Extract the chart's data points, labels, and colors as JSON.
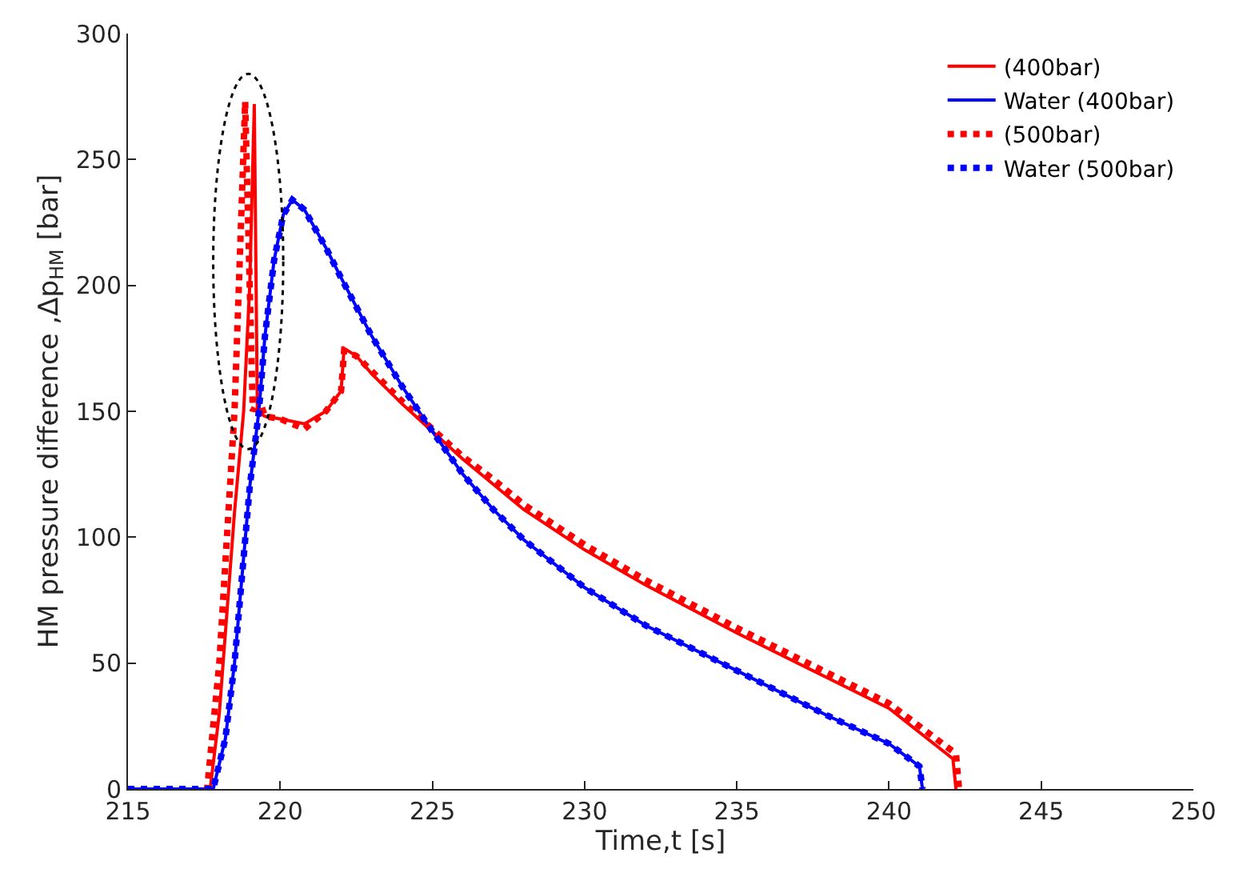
{
  "chart_data": {
    "type": "line",
    "xlabel": "Time,t [s]",
    "ylabel": "HM pressure difference ,Δp$_{HM}$ [bar]",
    "xlim": [
      215,
      250
    ],
    "xticks": [
      215,
      220,
      225,
      230,
      235,
      240,
      245,
      250
    ],
    "ylim": [
      0,
      300
    ],
    "yticks": [
      0,
      50,
      100,
      150,
      200,
      250,
      300
    ],
    "legend": "top right",
    "marker": "none",
    "series": [
      {
        "name": "(400bar)",
        "color": "#ff0000",
        "line_style": "solid",
        "x": [
          215,
          217.7,
          218.0,
          218.5,
          218.8,
          219.0,
          219.15,
          219.25,
          219.5,
          220,
          220.8,
          221.5,
          222,
          222.1,
          222.5,
          223,
          224,
          225,
          226,
          227,
          228,
          230,
          232,
          235,
          238,
          240,
          242.1,
          242.2
        ],
        "values": [
          0,
          0,
          30,
          110,
          150,
          200,
          272,
          150,
          148,
          147,
          145,
          150,
          158,
          175,
          172,
          165,
          153,
          142,
          131,
          121,
          111,
          95,
          81,
          62,
          44,
          32,
          12,
          0
        ]
      },
      {
        "name": "Water (400bar)",
        "color": "#0000ff",
        "line_style": "solid",
        "x": [
          215,
          217.8,
          218.2,
          218.5,
          219,
          219.3,
          219.5,
          219.8,
          220.1,
          220.4,
          220.8,
          221.5,
          222,
          223,
          224,
          225,
          226,
          227,
          228,
          230,
          232,
          235,
          238,
          240,
          241,
          241.1
        ],
        "values": [
          0,
          0,
          20,
          50,
          120,
          150,
          180,
          210,
          228,
          234,
          230,
          215,
          203,
          180,
          160,
          142,
          125,
          111,
          99,
          80,
          65,
          47,
          29,
          18,
          9,
          0
        ]
      },
      {
        "name": "(500bar)",
        "color": "#ff0000",
        "line_style": "dotted",
        "x": [
          215,
          217.6,
          218.0,
          218.5,
          218.7,
          218.85,
          219.1,
          219.3,
          219.5,
          220,
          220.8,
          221.5,
          222,
          222.1,
          222.5,
          223,
          224,
          225,
          226,
          227,
          228,
          230,
          232,
          235,
          238,
          240,
          242.2,
          242.3
        ],
        "values": [
          0,
          0,
          50,
          150,
          220,
          273,
          150,
          155,
          148,
          147,
          143,
          150,
          158,
          174,
          172,
          166,
          154,
          143,
          132,
          123,
          113,
          97,
          83,
          64,
          46,
          34,
          14,
          0
        ]
      },
      {
        "name": "Water (500bar)",
        "color": "#0000ff",
        "line_style": "dotted",
        "x": [
          215,
          217.8,
          218.2,
          218.5,
          219,
          219.3,
          219.5,
          219.8,
          220.1,
          220.4,
          220.8,
          221.5,
          222,
          223,
          224,
          225,
          226,
          227,
          228,
          230,
          232,
          235,
          238,
          240,
          241,
          241.1
        ],
        "values": [
          0,
          0,
          20,
          50,
          120,
          150,
          180,
          210,
          228,
          234,
          230,
          215,
          203,
          180,
          160,
          142,
          125,
          111,
          99,
          80,
          65,
          47,
          29,
          18,
          9,
          0
        ]
      }
    ]
  }
}
